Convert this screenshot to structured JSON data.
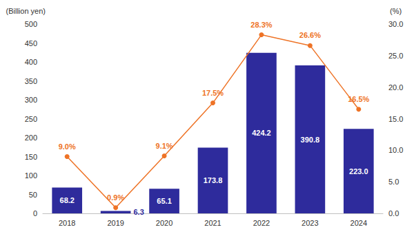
{
  "chart_data": {
    "type": "bar",
    "ylabel": "(Billion yen)",
    "y2label": "(%)",
    "categories": [
      "2018",
      "2019",
      "2020",
      "2021",
      "2022",
      "2023",
      "2024"
    ],
    "series": [
      {
        "type": "bar",
        "color": "#2E2B9C",
        "values": [
          68.2,
          6.3,
          65.1,
          173.8,
          424.2,
          390.8,
          223.0
        ],
        "value_labels": [
          "68.2",
          "6.3",
          "65.1",
          "173.8",
          "424.2",
          "390.8",
          "223.0"
        ]
      },
      {
        "type": "line",
        "axis": "y2",
        "color": "#EE7326",
        "marker": "circle",
        "values": [
          9.0,
          0.9,
          9.1,
          17.5,
          28.3,
          26.6,
          16.5
        ],
        "value_labels": [
          "9.0%",
          "0.9%",
          "9.1%",
          "17.5%",
          "28.3%",
          "26.6%",
          "16.5%"
        ]
      }
    ],
    "ylim": [
      0,
      500
    ],
    "yticks": [
      0,
      50,
      100,
      150,
      200,
      250,
      300,
      350,
      400,
      450,
      500
    ],
    "y2lim": [
      0,
      30
    ],
    "y2ticks": [
      {
        "value": 0,
        "label": "0.0"
      },
      {
        "value": 5,
        "label": "5.0"
      },
      {
        "value": 10,
        "label": "10.0"
      },
      {
        "value": 15,
        "label": "15.0"
      },
      {
        "value": 20,
        "label": "20.0"
      },
      {
        "value": 25,
        "label": "25.0"
      },
      {
        "value": 30,
        "label": "30.0"
      }
    ],
    "data_labels": true,
    "grid": false
  }
}
